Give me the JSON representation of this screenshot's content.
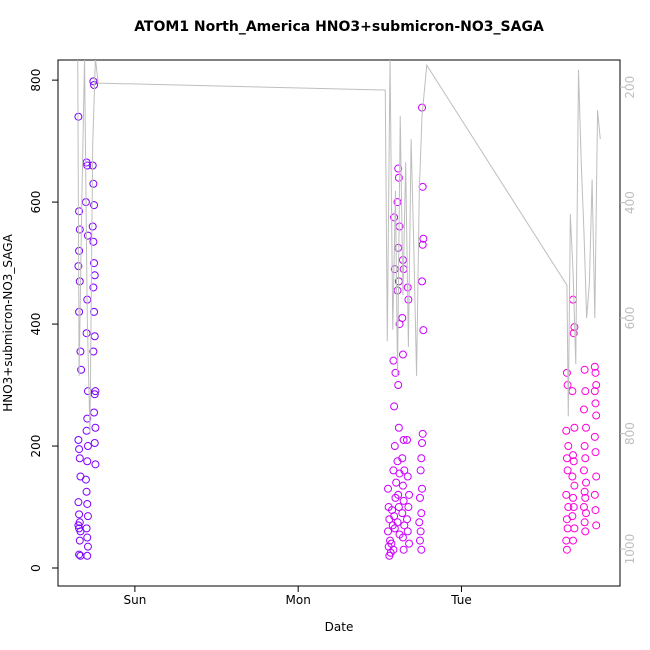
{
  "chart_data": {
    "type": "scatter",
    "title": "ATOM1 North_America HNO3+submicron-NO3_SAGA",
    "xlabel": "Date",
    "ylabel": "HNO3+submicron-NO3_SAGA",
    "xlim": [
      -11.3,
      71.3
    ],
    "xticks": [
      {
        "value": 0,
        "label": "Sun"
      },
      {
        "value": 24,
        "label": "Mon"
      },
      {
        "value": 48,
        "label": "Tue"
      }
    ],
    "ylim": [
      -29.5,
      833
    ],
    "yticks": [
      0,
      200,
      400,
      600,
      800
    ],
    "y2lim": [
      1064,
      153
    ],
    "y2ticks": [
      200,
      400,
      600,
      800,
      1000
    ],
    "grid": false,
    "series": [
      {
        "color": "#7f00ff",
        "x": [
          -8.3,
          -8.2,
          -8.1,
          -8.2,
          -8.3,
          -8.1,
          -8.2,
          -8.0,
          -7.9,
          -8.3,
          -8.2,
          -8.1,
          -8.0,
          -8.3,
          -8.2,
          -8.1,
          -8.3,
          -8.2,
          -8.0,
          -8.1,
          -8.2,
          -8.0,
          -7.1,
          -7.0,
          -7.2,
          -6.9,
          -7.0,
          -7.1,
          -6.9,
          -7.0,
          -7.1,
          -6.9,
          -7.0,
          -7.2,
          -7.1,
          -7.0,
          -6.9,
          -7.1,
          -7.0,
          -6.9,
          -7.0,
          -6.1,
          -6.0,
          -6.2,
          -6.1,
          -6.0,
          -6.2,
          -6.1,
          -6.0,
          -5.9,
          -6.1,
          -6.0,
          -5.9,
          -6.1,
          -5.8,
          -5.9,
          -6.0,
          -5.8,
          -5.9,
          -5.8
        ],
        "values": [
          740,
          585,
          555,
          520,
          495,
          470,
          420,
          355,
          325,
          210,
          195,
          180,
          150,
          108,
          88,
          75,
          70,
          65,
          60,
          45,
          22,
          20,
          665,
          660,
          600,
          545,
          440,
          385,
          290,
          245,
          225,
          200,
          175,
          145,
          125,
          105,
          85,
          65,
          50,
          35,
          20,
          798,
          792,
          660,
          630,
          595,
          560,
          535,
          500,
          480,
          460,
          420,
          380,
          355,
          290,
          285,
          255,
          230,
          205,
          170
        ]
      },
      {
        "color": "#cc00ff",
        "x": [
          37.2,
          37.3,
          37.4,
          37.2,
          37.5,
          37.3,
          37.6,
          37.4,
          37.7,
          37.8,
          37.9,
          38.1,
          38.2,
          38.0,
          38.3,
          38.1,
          38.2,
          38.0,
          38.4,
          38.3,
          38.1,
          38.2,
          38.0,
          38.7,
          38.8,
          38.6,
          38.9,
          38.7,
          38.8,
          38.6,
          38.9,
          38.7,
          38.8,
          38.6,
          38.9,
          38.7,
          38.8,
          38.6,
          38.9,
          39.4,
          39.5,
          39.3,
          39.4,
          39.5,
          39.3,
          39.6,
          39.4,
          39.5,
          39.3,
          39.6,
          39.4,
          39.5,
          40.1,
          40.2,
          40.0,
          40.1,
          40.3,
          40.2,
          40.0,
          40.1,
          40.3,
          42.2,
          42.3,
          42.4,
          42.3,
          42.2,
          42.4,
          42.3,
          42.2,
          42.1,
          42.0,
          42.2,
          41.9,
          42.1,
          41.8,
          42.0,
          41.9,
          42.1
        ],
        "values": [
          130,
          100,
          80,
          60,
          45,
          35,
          25,
          20,
          40,
          95,
          70,
          575,
          490,
          340,
          320,
          265,
          200,
          160,
          140,
          115,
          85,
          65,
          30,
          655,
          640,
          600,
          560,
          525,
          470,
          455,
          400,
          300,
          230,
          175,
          155,
          120,
          100,
          75,
          55,
          505,
          490,
          410,
          350,
          210,
          180,
          160,
          135,
          110,
          90,
          70,
          50,
          30,
          460,
          440,
          210,
          150,
          120,
          100,
          80,
          60,
          40,
          755,
          625,
          540,
          530,
          470,
          390,
          220,
          205,
          180,
          160,
          130,
          115,
          90,
          75,
          60,
          45,
          30
        ]
      },
      {
        "color": "#ff00dd",
        "x": [
          63.5,
          63.6,
          63.4,
          63.7,
          63.5,
          63.6,
          63.4,
          63.7,
          63.5,
          63.6,
          63.4,
          63.5,
          64.4,
          64.6,
          64.5,
          64.3,
          64.6,
          64.4,
          64.5,
          64.3,
          64.6,
          64.4,
          64.5,
          64.3,
          64.6,
          64.4,
          66.1,
          66.2,
          66.0,
          66.3,
          66.1,
          66.2,
          66.0,
          66.3,
          66.1,
          66.2,
          66.0,
          66.3,
          66.1,
          66.2,
          67.6,
          67.7,
          67.8,
          67.6,
          67.7,
          67.8,
          67.6,
          67.7,
          67.8,
          67.6,
          67.7,
          67.8
        ],
        "values": [
          320,
          300,
          225,
          200,
          180,
          160,
          120,
          100,
          80,
          65,
          45,
          30,
          440,
          395,
          385,
          290,
          230,
          185,
          175,
          150,
          135,
          115,
          100,
          85,
          65,
          45,
          325,
          290,
          260,
          230,
          200,
          180,
          160,
          140,
          125,
          115,
          100,
          90,
          75,
          60,
          330,
          320,
          300,
          290,
          270,
          250,
          215,
          190,
          150,
          120,
          95,
          70
        ]
      },
      {
        "type": "line",
        "axis": "y2",
        "color": "#bebebe",
        "x": [
          -8.4,
          -8.2,
          -7.8,
          -7.4,
          -7.0,
          -6.6,
          -6.2,
          -5.8,
          -5.4,
          36.8,
          37.1,
          37.5,
          37.9,
          38.3,
          38.6,
          39.0,
          39.4,
          39.8,
          40.2,
          40.6,
          41.0,
          41.4,
          41.8,
          42.2,
          42.9,
          63.5,
          63.7,
          64.0,
          64.4,
          64.8,
          65.2,
          65.6,
          66.0,
          66.4,
          66.8,
          67.2,
          67.6,
          68.0,
          68.4
        ],
        "values": [
          150,
          700,
          400,
          150,
          600,
          800,
          300,
          150,
          193,
          205,
          640,
          150,
          620,
          380,
          700,
          250,
          560,
          330,
          650,
          290,
          480,
          700,
          380,
          250,
          162,
          543,
          770,
          420,
          520,
          680,
          170,
          330,
          450,
          600,
          540,
          360,
          600,
          240,
          290
        ]
      }
    ]
  }
}
